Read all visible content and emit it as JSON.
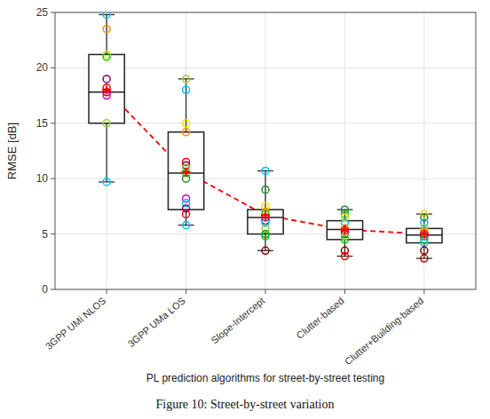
{
  "chart_data": {
    "type": "box",
    "xlabel": "PL prediction algorithms for street-by-street testing",
    "ylabel": "RMSE [dB]",
    "caption": "Figure 10: Street-by-street variation",
    "categories": [
      "3GPP UMi NLOS",
      "3GPP UMa LOS",
      "Slope-Intercept",
      "Clutter-based",
      "Clutter+Building-based"
    ],
    "boxes": [
      {
        "whislo": 9.7,
        "q1": 15.0,
        "med": 17.8,
        "q3": 21.2,
        "whishi": 24.8,
        "mean": 18.0
      },
      {
        "whislo": 5.8,
        "q1": 7.2,
        "med": 10.5,
        "q3": 14.2,
        "whishi": 19.0,
        "mean": 10.6
      },
      {
        "whislo": 3.5,
        "q1": 5.0,
        "med": 6.5,
        "q3": 7.2,
        "whishi": 10.7,
        "mean": 6.7
      },
      {
        "whislo": 3.0,
        "q1": 4.5,
        "med": 5.4,
        "q3": 6.2,
        "whishi": 7.2,
        "mean": 5.4
      },
      {
        "whislo": 2.8,
        "q1": 4.2,
        "med": 4.9,
        "q3": 5.5,
        "whishi": 6.8,
        "mean": 5.0
      }
    ],
    "points": [
      [
        {
          "value": 24.8,
          "color": "#00bfff"
        },
        {
          "value": 23.5,
          "color": "#ff8c00"
        },
        {
          "value": 21.2,
          "color": "#ffd700"
        },
        {
          "value": 21.0,
          "color": "#00cc00"
        },
        {
          "value": 19.0,
          "color": "#800080"
        },
        {
          "value": 18.2,
          "color": "#ff0000"
        },
        {
          "value": 17.8,
          "color": "#cc0000"
        },
        {
          "value": 17.5,
          "color": "#cc00cc"
        },
        {
          "value": 15.0,
          "color": "#9acd32"
        },
        {
          "value": 9.7,
          "color": "#00bfff"
        }
      ],
      [
        {
          "value": 19.0,
          "color": "#9acd32"
        },
        {
          "value": 18.0,
          "color": "#00bfff"
        },
        {
          "value": 15.0,
          "color": "#ffd700"
        },
        {
          "value": 14.2,
          "color": "#ff8c00"
        },
        {
          "value": 11.5,
          "color": "#ff0000"
        },
        {
          "value": 11.2,
          "color": "#800080"
        },
        {
          "value": 11.0,
          "color": "#9acd32"
        },
        {
          "value": 10.5,
          "color": "#00cc00"
        },
        {
          "value": 10.0,
          "color": "#228b22"
        },
        {
          "value": 8.2,
          "color": "#cc00cc"
        },
        {
          "value": 7.8,
          "color": "#00bfff"
        },
        {
          "value": 7.3,
          "color": "#800080"
        },
        {
          "value": 6.8,
          "color": "#ff0000"
        },
        {
          "value": 5.8,
          "color": "#00bfff"
        }
      ],
      [
        {
          "value": 10.7,
          "color": "#00bfff"
        },
        {
          "value": 9.0,
          "color": "#228b22"
        },
        {
          "value": 7.5,
          "color": "#ffd700"
        },
        {
          "value": 7.0,
          "color": "#ff8c00"
        },
        {
          "value": 6.8,
          "color": "#00cc00"
        },
        {
          "value": 6.5,
          "color": "#ff0000"
        },
        {
          "value": 6.2,
          "color": "#800080"
        },
        {
          "value": 6.0,
          "color": "#00bfff"
        },
        {
          "value": 5.5,
          "color": "#9acd32"
        },
        {
          "value": 5.0,
          "color": "#228b22"
        },
        {
          "value": 4.8,
          "color": "#00cc00"
        },
        {
          "value": 3.5,
          "color": "#8b0000"
        }
      ],
      [
        {
          "value": 7.2,
          "color": "#228b22"
        },
        {
          "value": 6.8,
          "color": "#00cc00"
        },
        {
          "value": 6.5,
          "color": "#ffd700"
        },
        {
          "value": 6.0,
          "color": "#00bfff"
        },
        {
          "value": 5.5,
          "color": "#ff8c00"
        },
        {
          "value": 5.3,
          "color": "#ff0000"
        },
        {
          "value": 5.0,
          "color": "#800080"
        },
        {
          "value": 4.8,
          "color": "#9acd32"
        },
        {
          "value": 4.5,
          "color": "#00cc00"
        },
        {
          "value": 3.5,
          "color": "#8b0000"
        },
        {
          "value": 3.0,
          "color": "#ff0000"
        }
      ],
      [
        {
          "value": 6.8,
          "color": "#ffd700"
        },
        {
          "value": 6.5,
          "color": "#228b22"
        },
        {
          "value": 6.0,
          "color": "#00bfff"
        },
        {
          "value": 5.5,
          "color": "#9acd32"
        },
        {
          "value": 5.2,
          "color": "#ff8c00"
        },
        {
          "value": 5.0,
          "color": "#ff0000"
        },
        {
          "value": 4.8,
          "color": "#800080"
        },
        {
          "value": 4.5,
          "color": "#00cc00"
        },
        {
          "value": 4.2,
          "color": "#00bfff"
        },
        {
          "value": 3.5,
          "color": "#8b0000"
        },
        {
          "value": 2.8,
          "color": "#cc0000"
        }
      ]
    ],
    "color": "#ff0000",
    "line_style": "dashed",
    "ylim": [
      0,
      25
    ],
    "yticks": [
      0,
      5,
      10,
      15,
      20,
      25
    ],
    "grid": true
  }
}
